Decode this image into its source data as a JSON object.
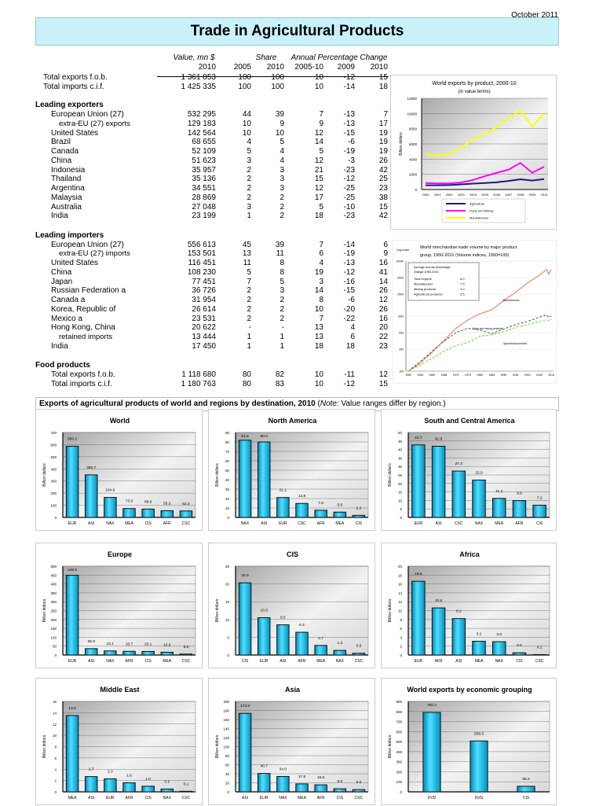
{
  "header": {
    "date": "October 2011",
    "title": "Trade in Agricultural Products"
  },
  "table": {
    "col_groups": [
      "Value, mn $",
      "Share",
      "Annual Percentage Change"
    ],
    "col_years": [
      "2010",
      "2005",
      "2010",
      "2005-10",
      "2009",
      "2010"
    ],
    "rows": [
      {
        "label": "Total exports f.o.b.",
        "indent": 1,
        "v": [
          "1 361 853",
          "100",
          "100",
          "10",
          "-12",
          "15"
        ]
      },
      {
        "label": "Total imports c.i.f.",
        "indent": 1,
        "v": [
          "1 425 335",
          "100",
          "100",
          "10",
          "-14",
          "18"
        ]
      },
      {
        "label": "",
        "indent": 0,
        "v": []
      },
      {
        "label": "Leading exporters",
        "indent": 0,
        "section": true,
        "v": []
      },
      {
        "label": "European Union (27)",
        "indent": 2,
        "v": [
          "532 295",
          "44",
          "39",
          "7",
          "-13",
          "7"
        ]
      },
      {
        "label": "extra-EU (27) exports",
        "indent": 3,
        "v": [
          "129 183",
          "10",
          "9",
          "9",
          "-13",
          "17"
        ]
      },
      {
        "label": "United States",
        "indent": 2,
        "v": [
          "142 564",
          "10",
          "10",
          "12",
          "-15",
          "19"
        ]
      },
      {
        "label": "Brazil",
        "indent": 2,
        "v": [
          "68 655",
          "4",
          "5",
          "14",
          "-6",
          "19"
        ]
      },
      {
        "label": "Canada",
        "indent": 2,
        "v": [
          "52 109",
          "5",
          "4",
          "5",
          "-19",
          "19"
        ]
      },
      {
        "label": "China",
        "indent": 2,
        "v": [
          "51 623",
          "3",
          "4",
          "12",
          "-3",
          "26"
        ]
      },
      {
        "label": "Indonesia",
        "indent": 2,
        "v": [
          "35 957",
          "2",
          "3",
          "21",
          "-23",
          "42"
        ]
      },
      {
        "label": "Thailand",
        "indent": 2,
        "v": [
          "35 136",
          "2",
          "3",
          "15",
          "-12",
          "25"
        ]
      },
      {
        "label": "Argentina",
        "indent": 2,
        "v": [
          "34 551",
          "2",
          "3",
          "12",
          "-25",
          "23"
        ]
      },
      {
        "label": "Malaysia",
        "indent": 2,
        "v": [
          "28 869",
          "2",
          "2",
          "17",
          "-25",
          "38"
        ]
      },
      {
        "label": "Australia",
        "indent": 2,
        "v": [
          "27 048",
          "3",
          "2",
          "5",
          "-10",
          "15"
        ]
      },
      {
        "label": "India",
        "indent": 2,
        "v": [
          "23 199",
          "1",
          "2",
          "18",
          "-23",
          "42"
        ]
      },
      {
        "label": "",
        "indent": 0,
        "v": []
      },
      {
        "label": "Leading importers",
        "indent": 0,
        "section": true,
        "v": []
      },
      {
        "label": "European Union (27)",
        "indent": 2,
        "v": [
          "556 613",
          "45",
          "39",
          "7",
          "-14",
          "6"
        ]
      },
      {
        "label": "extra-EU (27) imports",
        "indent": 3,
        "v": [
          "153 501",
          "13",
          "11",
          "6",
          "-19",
          "9"
        ]
      },
      {
        "label": "United States",
        "indent": 2,
        "v": [
          "116 451",
          "11",
          "8",
          "4",
          "-13",
          "16"
        ]
      },
      {
        "label": "China",
        "indent": 2,
        "v": [
          "108 230",
          "5",
          "8",
          "19",
          "-12",
          "41"
        ]
      },
      {
        "label": "Japan",
        "indent": 2,
        "v": [
          "77 451",
          "7",
          "5",
          "3",
          "-16",
          "14"
        ]
      },
      {
        "label": "Russian Federation  a",
        "indent": 2,
        "v": [
          "36 726",
          "2",
          "3",
          "14",
          "-15",
          "26"
        ]
      },
      {
        "label": "Canada  a",
        "indent": 2,
        "v": [
          "31 954",
          "2",
          "2",
          "8",
          "-6",
          "12"
        ]
      },
      {
        "label": "Korea, Republic of",
        "indent": 2,
        "v": [
          "26 614",
          "2",
          "2",
          "10",
          "-20",
          "26"
        ]
      },
      {
        "label": "Mexico  a",
        "indent": 2,
        "v": [
          "23 531",
          "2",
          "2",
          "7",
          "-22",
          "16"
        ]
      },
      {
        "label": "Hong Kong, China",
        "indent": 2,
        "v": [
          "20 622",
          "-",
          "-",
          "13",
          "4",
          "20"
        ]
      },
      {
        "label": "retained imports",
        "indent": 3,
        "v": [
          "13 444",
          "1",
          "1",
          "13",
          "6",
          "22"
        ]
      },
      {
        "label": "India",
        "indent": 2,
        "v": [
          "17 450",
          "1",
          "1",
          "18",
          "18",
          "23"
        ]
      },
      {
        "label": "",
        "indent": 0,
        "v": []
      },
      {
        "label": "Food products",
        "indent": 0,
        "section": true,
        "v": []
      },
      {
        "label": "Total exports f.o.b.",
        "indent": 2,
        "v": [
          "1 118 680",
          "80",
          "82",
          "10",
          "-11",
          "12"
        ]
      },
      {
        "label": "Total imports c.i.f.",
        "indent": 2,
        "v": [
          "1 180 763",
          "80",
          "83",
          "10",
          "-12",
          "15"
        ]
      }
    ]
  },
  "section": {
    "heading": "Exports of agricultural products of world and regions by destination, 2010",
    "note_label": "Note:",
    "note_text": "Value ranges differ by region."
  },
  "chart_data": [
    {
      "type": "line",
      "title": "World exports by product, 2000-10",
      "subtitle": "(in value terms)",
      "ylabel": "Billion dollars",
      "ylim": [
        0,
        12000
      ],
      "yticks": [
        0,
        2000,
        4000,
        6000,
        8000,
        10000,
        12000
      ],
      "grid": true,
      "legend": "bottom",
      "x": [
        "2000",
        "2001",
        "2002",
        "2003",
        "2004",
        "2005",
        "2006",
        "2007",
        "2008",
        "2009",
        "2010"
      ],
      "series": [
        {
          "name": "Agriculture",
          "color": "#1a1a80",
          "values": [
            550,
            550,
            580,
            670,
            780,
            850,
            950,
            1120,
            1340,
            1180,
            1370
          ]
        },
        {
          "name": "Fuels and Mining",
          "color": "#ff00ff",
          "values": [
            850,
            800,
            800,
            920,
            1250,
            1750,
            2200,
            2600,
            3500,
            2200,
            3000
          ]
        },
        {
          "name": "Manufactures",
          "color": "#ffff00",
          "values": [
            4650,
            4450,
            4700,
            5500,
            6600,
            7300,
            8200,
            9400,
            10400,
            8300,
            10000
          ]
        }
      ]
    },
    {
      "type": "line",
      "title": "World merchandise trade volume by major product group, 1950-2010  (Volume indices, 1950=100)",
      "scale_label": "Log scale",
      "log_scale": true,
      "ylim": [
        100,
        10000
      ],
      "yticks": [
        100,
        250,
        500,
        1000,
        2500,
        5000,
        10000
      ],
      "grid": true,
      "xticks": [
        "1950",
        "1955",
        "1960",
        "1965",
        "1970",
        "1975",
        "1980",
        "1985",
        "1990",
        "1995",
        "2000",
        "2005",
        "2010"
      ],
      "x": [
        1950,
        1955,
        1960,
        1965,
        1970,
        1975,
        1980,
        1985,
        1990,
        1995,
        2000,
        2005,
        2008,
        2009,
        2010
      ],
      "legend_box": {
        "title": "Average annual percentage change 1950-2010",
        "items": [
          {
            "label": "Total exports",
            "value": "6.0"
          },
          {
            "label": "Manufactures",
            "value": "7.5"
          },
          {
            "label": "Mining products",
            "value": "4.0"
          },
          {
            "label": "Agricultural products",
            "value": "3.5"
          }
        ]
      },
      "series": [
        {
          "name": "Manufactures",
          "color": "#f47a50",
          "dash": "",
          "values": [
            100,
            140,
            220,
            360,
            600,
            850,
            1100,
            1300,
            1900,
            2700,
            4000,
            5500,
            7000,
            5800,
            7000
          ]
        },
        {
          "name": "Fuels and mining products",
          "color": "#666666",
          "dash": "3,2",
          "values": [
            100,
            150,
            230,
            350,
            500,
            600,
            560,
            480,
            580,
            700,
            800,
            950,
            1050,
            950,
            1000
          ]
        },
        {
          "name": "Agricultural products",
          "color": "#66dd44",
          "dash": "3,2",
          "values": [
            100,
            130,
            170,
            230,
            290,
            330,
            430,
            460,
            520,
            620,
            700,
            800,
            860,
            830,
            880
          ]
        }
      ]
    },
    {
      "type": "bar",
      "title": "World",
      "ylabel": "Billion dollars",
      "ylim": [
        0,
        700
      ],
      "ystep": 100,
      "categories": [
        "EUR",
        "ASI",
        "NAX",
        "MEA",
        "CIS",
        "AFR",
        "CSC"
      ],
      "values": [
        586.2,
        350.7,
        164.8,
        73.0,
        68.9,
        55.2,
        53.3
      ]
    },
    {
      "type": "bar",
      "title": "North America",
      "ylabel": "Billion dollars",
      "ylim": [
        0,
        90
      ],
      "ystep": 10,
      "categories": [
        "NAX",
        "ASI",
        "EUR",
        "CSC",
        "AFR",
        "MEA",
        "CIS"
      ],
      "values": [
        81.8,
        80.0,
        21.1,
        14.8,
        7.6,
        5.6,
        2.2
      ]
    },
    {
      "type": "bar",
      "title": "South and Central America",
      "ylabel": "Billion dollars",
      "ylim": [
        0,
        50
      ],
      "ystep": 5,
      "categories": [
        "EUR",
        "ASI",
        "CSC",
        "NAX",
        "MEA",
        "AFR",
        "CIS"
      ],
      "values": [
        42.7,
        41.9,
        27.3,
        22.0,
        11.2,
        9.9,
        7.2
      ]
    },
    {
      "type": "bar",
      "title": "Europe",
      "ylabel": "Billion dollars",
      "ylim": [
        0,
        500
      ],
      "ystep": 50,
      "categories": [
        "EUR",
        "ASI",
        "NAX",
        "AFR",
        "CIS",
        "MEA",
        "CSC"
      ],
      "values": [
        448.5,
        35.9,
        23.1,
        20.7,
        20.1,
        15.6,
        5.5
      ]
    },
    {
      "type": "bar",
      "title": "CIS",
      "ylabel": "Billion dollars",
      "ylim": [
        0,
        25
      ],
      "ystep": 5,
      "categories": [
        "CIS",
        "EUR",
        "ASI",
        "AFR",
        "MEA",
        "NAX",
        "CSC"
      ],
      "values": [
        20.3,
        10.5,
        8.5,
        6.4,
        2.7,
        1.3,
        0.5
      ]
    },
    {
      "type": "bar",
      "title": "Africa",
      "ylabel": "Billion dollars",
      "ylim": [
        0,
        20
      ],
      "ystep": 2,
      "categories": [
        "EUR",
        "AFR",
        "ASI",
        "MEA",
        "NAX",
        "CIS",
        "CSC"
      ],
      "values": [
        16.6,
        10.6,
        8.2,
        3.1,
        3.0,
        0.5,
        0.1
      ]
    },
    {
      "type": "bar",
      "title": "Middle East",
      "ylabel": "Billion dollars",
      "ylim": [
        0,
        16
      ],
      "ystep": 2,
      "categories": [
        "MEA",
        "ASI",
        "EUR",
        "AFR",
        "CIS",
        "NAX",
        "CSC"
      ],
      "values": [
        13.5,
        2.7,
        2.3,
        1.6,
        1.0,
        0.5,
        0.1
      ]
    },
    {
      "type": "bar",
      "title": "Asia",
      "ylabel": "Billion dollars",
      "ylim": [
        0,
        200
      ],
      "ystep": 20,
      "categories": [
        "ASI",
        "EUR",
        "NAX",
        "MEA",
        "AFR",
        "CIS",
        "CSC"
      ],
      "values": [
        173.5,
        40.7,
        34.0,
        17.6,
        15.5,
        6.8,
        5.0
      ]
    },
    {
      "type": "bar",
      "title": "World exports by economic grouping",
      "ylabel": "Billion dollars",
      "ylim": [
        0,
        900
      ],
      "ystep": 100,
      "categories": [
        "DVD",
        "DVG",
        "CIS"
      ],
      "values": [
        790.2,
        506.5,
        55.2
      ]
    }
  ]
}
